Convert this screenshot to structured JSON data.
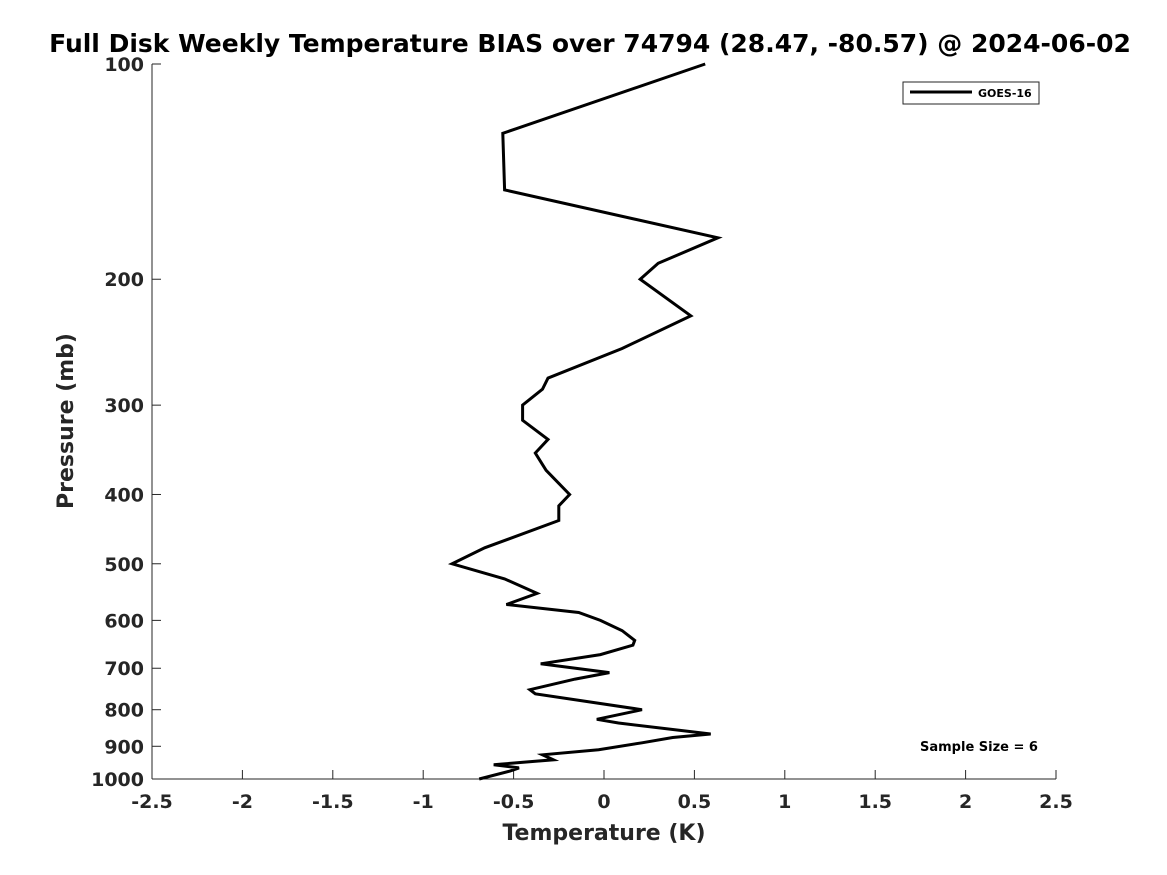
{
  "chart_data": {
    "type": "line",
    "title": "Full Disk Weekly Temperature BIAS over 74794 (28.47, -80.57) @ 2024-06-02",
    "xlabel": "Temperature (K)",
    "ylabel": "Pressure (mb)",
    "xlim": [
      -2.5,
      2.5
    ],
    "ylim": [
      100,
      1000
    ],
    "y_scale": "log",
    "y_reversed": true,
    "grid": false,
    "legend_position": "top-right",
    "x_ticks": [
      {
        "value": -2.5,
        "label": "-2.5"
      },
      {
        "value": -2,
        "label": "-2"
      },
      {
        "value": -1.5,
        "label": "-1.5"
      },
      {
        "value": -1,
        "label": "-1"
      },
      {
        "value": -0.5,
        "label": "-0.5"
      },
      {
        "value": 0,
        "label": "0"
      },
      {
        "value": 0.5,
        "label": "0.5"
      },
      {
        "value": 1,
        "label": "1"
      },
      {
        "value": 1.5,
        "label": "1.5"
      },
      {
        "value": 2,
        "label": "2"
      },
      {
        "value": 2.5,
        "label": "2.5"
      }
    ],
    "y_ticks": [
      {
        "value": 100,
        "label": "100"
      },
      {
        "value": 200,
        "label": "200"
      },
      {
        "value": 300,
        "label": "300"
      },
      {
        "value": 400,
        "label": "400"
      },
      {
        "value": 500,
        "label": "500"
      },
      {
        "value": 600,
        "label": "600"
      },
      {
        "value": 700,
        "label": "700"
      },
      {
        "value": 800,
        "label": "800"
      },
      {
        "value": 900,
        "label": "900"
      },
      {
        "value": 1000,
        "label": "1000"
      }
    ],
    "series": [
      {
        "name": "GOES-16",
        "color": "#000000",
        "points": [
          {
            "x": 0.56,
            "p": 100
          },
          {
            "x": -0.56,
            "p": 125
          },
          {
            "x": -0.55,
            "p": 150
          },
          {
            "x": 0.63,
            "p": 175
          },
          {
            "x": 0.3,
            "p": 190
          },
          {
            "x": 0.2,
            "p": 200
          },
          {
            "x": 0.48,
            "p": 225
          },
          {
            "x": 0.1,
            "p": 250
          },
          {
            "x": -0.31,
            "p": 275
          },
          {
            "x": -0.34,
            "p": 285
          },
          {
            "x": -0.45,
            "p": 300
          },
          {
            "x": -0.45,
            "p": 315
          },
          {
            "x": -0.31,
            "p": 335
          },
          {
            "x": -0.38,
            "p": 350
          },
          {
            "x": -0.32,
            "p": 370
          },
          {
            "x": -0.19,
            "p": 400
          },
          {
            "x": -0.25,
            "p": 415
          },
          {
            "x": -0.25,
            "p": 435
          },
          {
            "x": -0.66,
            "p": 475
          },
          {
            "x": -0.84,
            "p": 500
          },
          {
            "x": -0.55,
            "p": 525
          },
          {
            "x": -0.37,
            "p": 550
          },
          {
            "x": -0.54,
            "p": 570
          },
          {
            "x": -0.14,
            "p": 585
          },
          {
            "x": -0.02,
            "p": 600
          },
          {
            "x": 0.1,
            "p": 620
          },
          {
            "x": 0.17,
            "p": 640
          },
          {
            "x": 0.16,
            "p": 650
          },
          {
            "x": -0.02,
            "p": 670
          },
          {
            "x": -0.35,
            "p": 690
          },
          {
            "x": 0.03,
            "p": 710
          },
          {
            "x": -0.16,
            "p": 725
          },
          {
            "x": -0.41,
            "p": 750
          },
          {
            "x": -0.38,
            "p": 760
          },
          {
            "x": 0.21,
            "p": 800
          },
          {
            "x": -0.04,
            "p": 825
          },
          {
            "x": 0.08,
            "p": 835
          },
          {
            "x": 0.59,
            "p": 865
          },
          {
            "x": 0.38,
            "p": 875
          },
          {
            "x": 0.21,
            "p": 890
          },
          {
            "x": -0.03,
            "p": 910
          },
          {
            "x": -0.34,
            "p": 925
          },
          {
            "x": -0.28,
            "p": 940
          },
          {
            "x": -0.61,
            "p": 955
          },
          {
            "x": -0.47,
            "p": 965
          },
          {
            "x": -0.52,
            "p": 975
          },
          {
            "x": -0.69,
            "p": 1000
          }
        ]
      }
    ],
    "legend": [
      {
        "label": "GOES-16",
        "color": "#000000"
      }
    ],
    "annotation": "Sample Size = 6"
  }
}
